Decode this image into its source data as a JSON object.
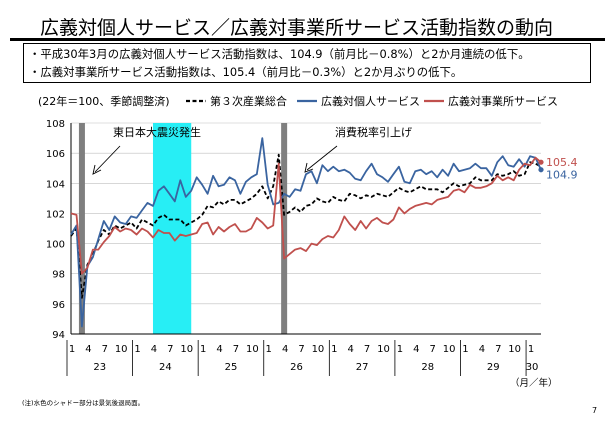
{
  "header": {
    "title": "広義対個人サービス／広義対事業所サービス活動指数の動向",
    "bullets": [
      "・平成30年3月の広義対個人サービス活動指数は、104.9（前月比－0.8%）と2か月連続の低下。",
      "・広義対事業所サービス活動指数は、105.4（前月比－0.3%）と2か月ぶりの低下。"
    ]
  },
  "footer": {
    "note": "(注)水色のシャドー部分は景気後退局面。",
    "page_number": "7"
  },
  "colors": {
    "personal": "#3a64a0",
    "business": "#c0504d",
    "tertiary": "#000000",
    "recession": "#27eef5",
    "event_bar": "#7f7f7f"
  },
  "chart_data": {
    "type": "line",
    "title": "",
    "ylabel": "",
    "xlabel": "（月／年）",
    "unit_note": "(22年＝100、季節調整済)",
    "ylim": [
      94,
      108
    ],
    "yticks": [
      94,
      96,
      98,
      100,
      102,
      104,
      106,
      108
    ],
    "month_tick_labels": [
      "1",
      "4",
      "7",
      "10",
      "1",
      "4",
      "7",
      "10",
      "1",
      "4",
      "7",
      "10",
      "1",
      "4",
      "7",
      "10",
      "1",
      "4",
      "7",
      "10",
      "1",
      "4",
      "7",
      "10",
      "1",
      "4",
      "7",
      "10",
      "1"
    ],
    "year_labels": [
      "23",
      "24",
      "25",
      "26",
      "27",
      "28",
      "29",
      "30"
    ],
    "x_range": [
      "2011-01",
      "2018-03"
    ],
    "recession_shade": {
      "start": "2012-04",
      "end": "2012-11"
    },
    "events": [
      {
        "label": "東日本大震災発生",
        "month": "2011-03"
      },
      {
        "label": "消費税率引上げ",
        "month": "2014-04"
      }
    ],
    "end_labels": {
      "business": "105.4",
      "personal": "104.9"
    },
    "series": [
      {
        "name": "第３次産業総合",
        "key": "tertiary",
        "style": "dashed",
        "values": [
          100.5,
          101.0,
          96.4,
          98.6,
          99.3,
          100.2,
          100.9,
          100.6,
          101.2,
          101.0,
          101.2,
          101.4,
          101.0,
          101.6,
          101.4,
          101.2,
          101.7,
          101.9,
          101.6,
          101.6,
          101.6,
          101.2,
          101.4,
          101.6,
          101.9,
          102.5,
          102.4,
          102.8,
          102.6,
          102.9,
          102.9,
          102.6,
          102.8,
          103.0,
          103.3,
          103.8,
          103.0,
          103.8,
          105.9,
          101.9,
          102.1,
          102.4,
          102.1,
          102.5,
          102.6,
          103.0,
          102.8,
          102.7,
          103.1,
          102.9,
          102.8,
          103.3,
          103.2,
          103.0,
          103.2,
          103.1,
          103.3,
          103.2,
          103.1,
          103.4,
          103.7,
          103.5,
          103.4,
          103.6,
          103.8,
          103.6,
          103.6,
          103.6,
          103.4,
          103.7,
          104.0,
          103.8,
          103.9,
          104.0,
          104.4,
          104.2,
          104.2,
          104.2,
          104.6,
          104.5,
          104.6,
          104.8,
          104.5,
          104.6,
          105.4,
          105.3,
          105.1
        ]
      },
      {
        "name": "広義対個人サービス",
        "key": "personal",
        "style": "solid",
        "values": [
          100.6,
          101.2,
          94.5,
          98.5,
          99.1,
          100.3,
          101.5,
          100.9,
          101.8,
          101.4,
          101.3,
          101.8,
          101.7,
          102.2,
          102.7,
          102.5,
          103.5,
          103.8,
          103.3,
          102.8,
          104.2,
          103.1,
          103.5,
          104.4,
          103.9,
          103.3,
          104.5,
          103.8,
          103.9,
          104.4,
          104.2,
          103.3,
          104.1,
          104.4,
          104.6,
          107.0,
          103.9,
          102.6,
          102.7,
          103.3,
          103.1,
          103.6,
          103.5,
          104.6,
          104.8,
          104.0,
          105.2,
          104.8,
          105.1,
          104.8,
          104.9,
          104.7,
          104.3,
          104.2,
          104.8,
          105.3,
          104.6,
          104.4,
          104.1,
          104.6,
          105.1,
          104.1,
          104.0,
          104.8,
          104.9,
          104.6,
          104.8,
          104.4,
          104.9,
          104.5,
          105.3,
          104.8,
          104.9,
          105.0,
          105.3,
          105.0,
          105.0,
          104.5,
          105.4,
          105.8,
          105.2,
          105.1,
          105.6,
          105.1,
          105.8,
          105.7,
          104.9
        ]
      },
      {
        "name": "広義対事業所サービス",
        "key": "business",
        "style": "solid",
        "values": [
          102.0,
          101.9,
          98.0,
          98.4,
          99.6,
          99.6,
          100.1,
          100.5,
          101.1,
          100.8,
          101.0,
          100.9,
          100.6,
          101.0,
          100.8,
          100.4,
          100.9,
          100.7,
          100.7,
          100.2,
          100.6,
          100.5,
          100.6,
          100.7,
          101.3,
          101.4,
          100.6,
          101.1,
          100.8,
          101.1,
          101.3,
          100.8,
          100.8,
          101.0,
          101.7,
          101.4,
          101.0,
          101.2,
          105.3,
          99.0,
          99.3,
          99.6,
          99.7,
          99.5,
          100.0,
          99.9,
          100.3,
          100.5,
          100.4,
          100.9,
          101.8,
          101.3,
          100.9,
          101.5,
          101.0,
          101.5,
          101.7,
          101.4,
          101.3,
          101.6,
          102.4,
          102.0,
          102.3,
          102.5,
          102.6,
          102.7,
          102.6,
          102.9,
          103.0,
          103.1,
          103.5,
          103.6,
          103.4,
          103.9,
          103.7,
          103.7,
          103.8,
          104.0,
          104.5,
          104.2,
          104.4,
          104.2,
          104.9,
          105.3,
          105.2,
          105.7,
          105.4
        ]
      }
    ]
  }
}
